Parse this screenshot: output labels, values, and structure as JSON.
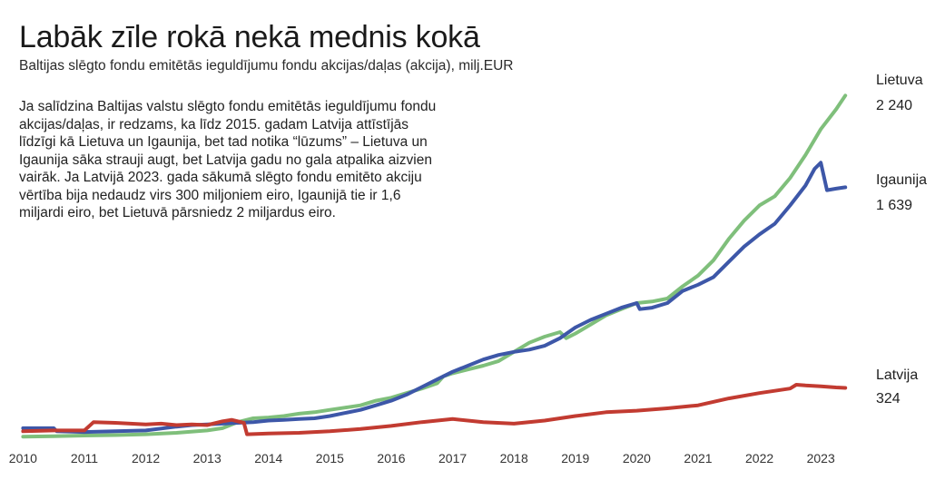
{
  "header": {
    "title": "Labāk zīle rokā nekā mednis kokā",
    "subtitle": "Baltijas slēgto fondu emitētās ieguldījumu fondu akcijas/daļas (akcija), milj.EUR"
  },
  "description": "Ja salīdzina Baltijas valstu slēgto fondu emitētās ieguldījumu fondu akcijas/daļas, ir redzams, ka līdz 2015. gadam Latvija attīstījās līdzīgi kā Lietuva un Igaunija, bet tad notika “lūzums” – Lietuva un Igaunija sāka strauji augt, bet Latvija gadu no gala atpalika aizvien vairāk. Ja Latvijā 2023. gada sākumā slēgto fondu emitēto akciju vērtība bija nedaudz virs 300 miljoniem eiro, Igaunijā tie ir 1,6 miljardi eiro, bet Lietuvā pārsniedz 2 miljardus eiro.",
  "chart_data": {
    "type": "line",
    "title": "Labāk zīle rokā nekā mednis kokā",
    "subtitle": "Baltijas slēgto fondu emitētās ieguldījumu fondu akcijas/daļas (akcija), milj.EUR",
    "x_ticks": [
      "2010",
      "2011",
      "2012",
      "2013",
      "2014",
      "2015",
      "2016",
      "2017",
      "2018",
      "2019",
      "2020",
      "2021",
      "2022",
      "2023"
    ],
    "xlim": [
      2009.95,
      2023.5
    ],
    "ylim": [
      0,
      2450
    ],
    "grid": false,
    "legend": "direct labels at right end",
    "series": [
      {
        "name": "Lietuva",
        "end_label": "2 240",
        "color": "#7fbf7b",
        "points": [
          [
            2010.0,
            5
          ],
          [
            2010.5,
            8
          ],
          [
            2011.0,
            12
          ],
          [
            2011.5,
            15
          ],
          [
            2012.0,
            20
          ],
          [
            2012.5,
            30
          ],
          [
            2013.0,
            45
          ],
          [
            2013.25,
            60
          ],
          [
            2013.5,
            100
          ],
          [
            2013.75,
            125
          ],
          [
            2014.0,
            130
          ],
          [
            2014.25,
            140
          ],
          [
            2014.5,
            155
          ],
          [
            2014.75,
            165
          ],
          [
            2015.0,
            180
          ],
          [
            2015.25,
            195
          ],
          [
            2015.5,
            210
          ],
          [
            2015.75,
            240
          ],
          [
            2016.0,
            260
          ],
          [
            2016.25,
            290
          ],
          [
            2016.5,
            320
          ],
          [
            2016.75,
            355
          ],
          [
            2016.85,
            400
          ],
          [
            2017.0,
            420
          ],
          [
            2017.25,
            445
          ],
          [
            2017.5,
            470
          ],
          [
            2017.75,
            500
          ],
          [
            2018.0,
            560
          ],
          [
            2018.25,
            620
          ],
          [
            2018.5,
            660
          ],
          [
            2018.75,
            690
          ],
          [
            2018.85,
            650
          ],
          [
            2019.0,
            680
          ],
          [
            2019.25,
            740
          ],
          [
            2019.5,
            800
          ],
          [
            2019.75,
            840
          ],
          [
            2020.0,
            880
          ],
          [
            2020.25,
            890
          ],
          [
            2020.5,
            910
          ],
          [
            2020.75,
            990
          ],
          [
            2021.0,
            1060
          ],
          [
            2021.25,
            1160
          ],
          [
            2021.5,
            1300
          ],
          [
            2021.75,
            1420
          ],
          [
            2022.0,
            1520
          ],
          [
            2022.25,
            1580
          ],
          [
            2022.5,
            1700
          ],
          [
            2022.75,
            1850
          ],
          [
            2023.0,
            2020
          ],
          [
            2023.25,
            2150
          ],
          [
            2023.4,
            2240
          ]
        ]
      },
      {
        "name": "Igaunija",
        "end_label": "1 639",
        "color": "#3d57a8",
        "points": [
          [
            2010.0,
            60
          ],
          [
            2010.5,
            60
          ],
          [
            2010.55,
            40
          ],
          [
            2011.0,
            35
          ],
          [
            2011.5,
            40
          ],
          [
            2012.0,
            45
          ],
          [
            2012.5,
            70
          ],
          [
            2012.75,
            80
          ],
          [
            2013.0,
            85
          ],
          [
            2013.5,
            95
          ],
          [
            2013.75,
            100
          ],
          [
            2014.0,
            110
          ],
          [
            2014.25,
            115
          ],
          [
            2014.5,
            120
          ],
          [
            2014.75,
            125
          ],
          [
            2015.0,
            140
          ],
          [
            2015.25,
            160
          ],
          [
            2015.5,
            180
          ],
          [
            2015.75,
            210
          ],
          [
            2016.0,
            240
          ],
          [
            2016.25,
            280
          ],
          [
            2016.5,
            330
          ],
          [
            2016.75,
            380
          ],
          [
            2017.0,
            430
          ],
          [
            2017.25,
            470
          ],
          [
            2017.5,
            510
          ],
          [
            2017.75,
            540
          ],
          [
            2018.0,
            560
          ],
          [
            2018.25,
            575
          ],
          [
            2018.5,
            600
          ],
          [
            2018.75,
            650
          ],
          [
            2019.0,
            720
          ],
          [
            2019.25,
            770
          ],
          [
            2019.5,
            810
          ],
          [
            2019.75,
            850
          ],
          [
            2020.0,
            880
          ],
          [
            2020.05,
            840
          ],
          [
            2020.25,
            850
          ],
          [
            2020.5,
            880
          ],
          [
            2020.75,
            960
          ],
          [
            2021.0,
            1000
          ],
          [
            2021.25,
            1050
          ],
          [
            2021.5,
            1150
          ],
          [
            2021.75,
            1250
          ],
          [
            2022.0,
            1330
          ],
          [
            2022.25,
            1400
          ],
          [
            2022.5,
            1520
          ],
          [
            2022.75,
            1650
          ],
          [
            2022.9,
            1760
          ],
          [
            2023.0,
            1800
          ],
          [
            2023.1,
            1620
          ],
          [
            2023.25,
            1630
          ],
          [
            2023.4,
            1639
          ]
        ]
      },
      {
        "name": "Latvija",
        "end_label": "324",
        "color": "#c23b31",
        "points": [
          [
            2010.0,
            40
          ],
          [
            2010.5,
            45
          ],
          [
            2011.0,
            45
          ],
          [
            2011.15,
            100
          ],
          [
            2011.5,
            95
          ],
          [
            2012.0,
            85
          ],
          [
            2012.25,
            90
          ],
          [
            2012.5,
            80
          ],
          [
            2012.75,
            85
          ],
          [
            2013.0,
            80
          ],
          [
            2013.25,
            105
          ],
          [
            2013.4,
            115
          ],
          [
            2013.6,
            95
          ],
          [
            2013.65,
            20
          ],
          [
            2014.0,
            25
          ],
          [
            2014.5,
            30
          ],
          [
            2015.0,
            40
          ],
          [
            2015.5,
            55
          ],
          [
            2016.0,
            75
          ],
          [
            2016.5,
            100
          ],
          [
            2017.0,
            120
          ],
          [
            2017.5,
            100
          ],
          [
            2018.0,
            90
          ],
          [
            2018.5,
            110
          ],
          [
            2019.0,
            140
          ],
          [
            2019.5,
            165
          ],
          [
            2020.0,
            175
          ],
          [
            2020.5,
            190
          ],
          [
            2021.0,
            210
          ],
          [
            2021.5,
            255
          ],
          [
            2022.0,
            290
          ],
          [
            2022.25,
            305
          ],
          [
            2022.5,
            320
          ],
          [
            2022.6,
            345
          ],
          [
            2022.75,
            340
          ],
          [
            2023.0,
            335
          ],
          [
            2023.25,
            327
          ],
          [
            2023.4,
            324
          ]
        ]
      }
    ]
  }
}
